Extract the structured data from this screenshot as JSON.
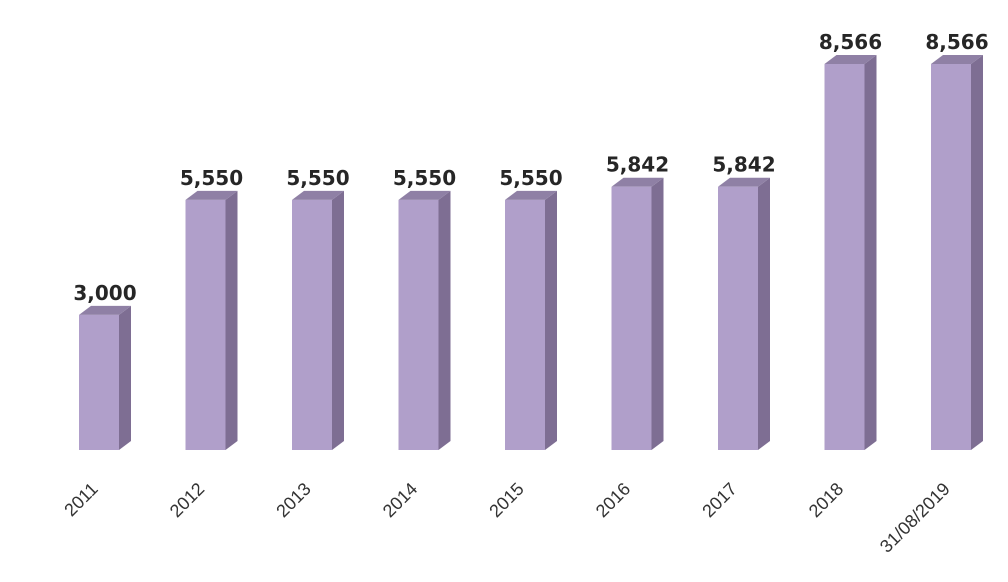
{
  "chart_data": {
    "type": "bar",
    "categories": [
      "2011",
      "2012",
      "2013",
      "2014",
      "2015",
      "2016",
      "2017",
      "2018",
      "31/08/2019"
    ],
    "values": [
      3000,
      5550,
      5550,
      5550,
      5550,
      5842,
      5842,
      8566,
      8566
    ],
    "value_labels": [
      "3,000",
      "5,550",
      "5,550",
      "5,550",
      "5,550",
      "5,842",
      "5,842",
      "8,566",
      "8,566"
    ],
    "ylim": [
      0,
      8566
    ],
    "grid": false,
    "legend": "none",
    "style": "3d-column",
    "colors": {
      "front": "#b09fca",
      "side": "#7e6e93",
      "top": "#8f80a5"
    }
  }
}
